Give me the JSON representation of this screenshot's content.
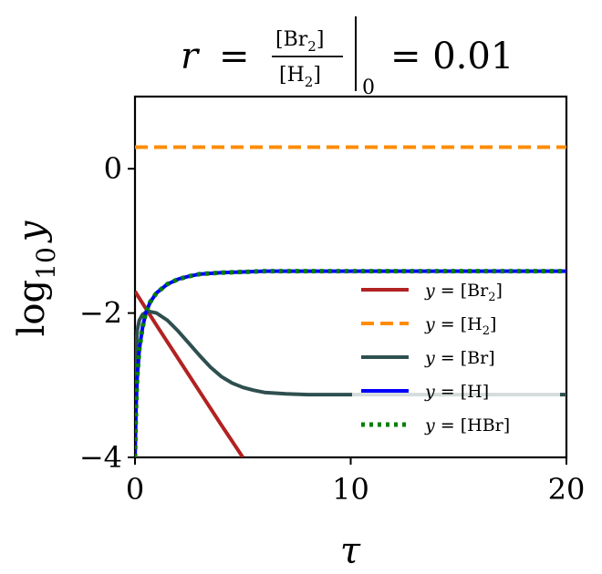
{
  "chart_data": {
    "type": "line",
    "title": {
      "r": "r",
      "eq": "=",
      "num": "[Br",
      "num_sub": "2",
      "num_close": "]",
      "den": "[H",
      "den_sub": "2",
      "den_close": "]",
      "eval_at": "0",
      "rhs": "= 0.01"
    },
    "xlabel": "τ",
    "ylabel": {
      "base": "log",
      "sub": "10",
      "var": "y"
    },
    "xlim": [
      0,
      20
    ],
    "ylim": [
      -4,
      1
    ],
    "xticks": [
      0,
      10,
      20
    ],
    "xtick_labels": [
      "0",
      "10",
      "20"
    ],
    "yticks": [
      0,
      -2,
      -4
    ],
    "ytick_labels": [
      "0",
      "−2",
      "−4"
    ],
    "grid": false,
    "legend_position": "center-right",
    "series": [
      {
        "name": "y = [Br2]",
        "legend": {
          "lhs": "y",
          "eq": " = [Br",
          "sub": "2",
          "close": "]"
        },
        "color": "#b22222",
        "style": "solid",
        "x": [
          0,
          1,
          2,
          3,
          4,
          5
        ],
        "y": [
          -1.7,
          -2.17,
          -2.63,
          -3.09,
          -3.55,
          -4.0
        ]
      },
      {
        "name": "y = [H2]",
        "legend": {
          "lhs": "y",
          "eq": " = [H",
          "sub": "2",
          "close": "]"
        },
        "color": "#ff8c00",
        "style": "dashed",
        "x": [
          0,
          5,
          10,
          15,
          20
        ],
        "y": [
          0.3,
          0.3,
          0.3,
          0.3,
          0.3
        ]
      },
      {
        "name": "y = [Br]",
        "legend": {
          "lhs": "y",
          "eq": " = [Br]",
          "sub": "",
          "close": ""
        },
        "color": "#2f4f4f",
        "style": "solid",
        "x": [
          0,
          0.02,
          0.05,
          0.1,
          0.2,
          0.35,
          0.5,
          0.7,
          1,
          1.5,
          2,
          2.5,
          3,
          3.5,
          4,
          4.5,
          5,
          5.5,
          6,
          7,
          8,
          10,
          12,
          15,
          20
        ],
        "y": [
          -4.0,
          -3.0,
          -2.5,
          -2.25,
          -2.1,
          -2.02,
          -1.99,
          -1.98,
          -2.0,
          -2.1,
          -2.25,
          -2.42,
          -2.59,
          -2.75,
          -2.88,
          -2.97,
          -3.03,
          -3.07,
          -3.1,
          -3.12,
          -3.13,
          -3.13,
          -3.13,
          -3.13,
          -3.13
        ]
      },
      {
        "name": "y = [H]",
        "legend": {
          "lhs": "y",
          "eq": " = [H]",
          "sub": "",
          "close": ""
        },
        "color": "#0000ff",
        "style": "solid",
        "x": [
          0,
          0.05,
          0.1,
          0.2,
          0.35,
          0.5,
          0.7,
          1,
          1.5,
          2,
          2.5,
          3,
          4,
          5,
          6,
          8,
          10,
          15,
          20
        ],
        "y": [
          -4.0,
          -3.3,
          -2.9,
          -2.5,
          -2.2,
          -2.0,
          -1.85,
          -1.72,
          -1.6,
          -1.53,
          -1.49,
          -1.46,
          -1.44,
          -1.43,
          -1.42,
          -1.42,
          -1.42,
          -1.42,
          -1.42
        ]
      },
      {
        "name": "y = [HBr]",
        "legend": {
          "lhs": "y",
          "eq": " = [HBr]",
          "sub": "",
          "close": ""
        },
        "color": "#008000",
        "style": "dotted",
        "x": [
          0,
          0.05,
          0.1,
          0.2,
          0.35,
          0.5,
          0.7,
          1,
          1.5,
          2,
          2.5,
          3,
          4,
          5,
          6,
          8,
          10,
          15,
          20
        ],
        "y": [
          -4.0,
          -3.3,
          -2.9,
          -2.5,
          -2.2,
          -2.0,
          -1.85,
          -1.72,
          -1.6,
          -1.53,
          -1.49,
          -1.46,
          -1.44,
          -1.43,
          -1.42,
          -1.42,
          -1.42,
          -1.42,
          -1.42
        ]
      }
    ]
  }
}
